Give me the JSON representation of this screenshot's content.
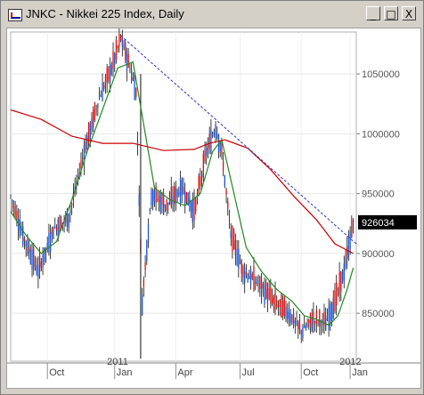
{
  "window": {
    "title": "JNKC - Nikkei 225 Index, Daily",
    "controls": {
      "minimize": "_",
      "maximize": "□",
      "close": "X"
    }
  },
  "chart_data": {
    "type": "candlestick",
    "title": "JNKC - Nikkei 225 Index, Daily",
    "ylim": [
      810000,
      1085000
    ],
    "y_ticks": [
      {
        "value": 850000,
        "label": "850000"
      },
      {
        "value": 900000,
        "label": "900000"
      },
      {
        "value": 950000,
        "label": "950000"
      },
      {
        "value": 1000000,
        "label": "1000000"
      },
      {
        "value": 1050000,
        "label": "1050000"
      }
    ],
    "x_ticks": [
      "Oct",
      "Jan",
      "Apr",
      "Jul",
      "Oct",
      "Jan"
    ],
    "year_labels": [
      "2011",
      "2012"
    ],
    "last_price": 926034,
    "last_price_label": "926034",
    "price_path": [
      [
        0,
        948000
      ],
      [
        8,
        915000
      ],
      [
        18,
        885000
      ],
      [
        28,
        920000
      ],
      [
        38,
        930000
      ],
      [
        48,
        985000
      ],
      [
        58,
        1030000
      ],
      [
        66,
        1055000
      ],
      [
        72,
        1080000
      ],
      [
        78,
        1055000
      ],
      [
        82,
        1035000
      ],
      [
        86,
        860000
      ],
      [
        92,
        950000
      ],
      [
        102,
        940000
      ],
      [
        112,
        955000
      ],
      [
        120,
        935000
      ],
      [
        128,
        985000
      ],
      [
        134,
        1005000
      ],
      [
        138,
        985000
      ],
      [
        144,
        915000
      ],
      [
        152,
        885000
      ],
      [
        162,
        875000
      ],
      [
        172,
        860000
      ],
      [
        182,
        850000
      ],
      [
        190,
        835000
      ],
      [
        198,
        845000
      ],
      [
        206,
        842000
      ],
      [
        212,
        860000
      ],
      [
        218,
        885000
      ],
      [
        224,
        926034
      ]
    ],
    "series": [
      {
        "name": "",
        "color": "#228822",
        "points": [
          [
            0,
            935000
          ],
          [
            10,
            915000
          ],
          [
            20,
            900000
          ],
          [
            30,
            910000
          ],
          [
            40,
            945000
          ],
          [
            50,
            985000
          ],
          [
            60,
            1020000
          ],
          [
            70,
            1055000
          ],
          [
            80,
            1060000
          ],
          [
            88,
            1000000
          ],
          [
            94,
            955000
          ],
          [
            104,
            945000
          ],
          [
            114,
            940000
          ],
          [
            124,
            950000
          ],
          [
            132,
            985000
          ],
          [
            138,
            995000
          ],
          [
            146,
            950000
          ],
          [
            154,
            905000
          ],
          [
            164,
            885000
          ],
          [
            174,
            870000
          ],
          [
            184,
            860000
          ],
          [
            192,
            848000
          ],
          [
            200,
            845000
          ],
          [
            208,
            840000
          ],
          [
            214,
            848000
          ],
          [
            220,
            870000
          ],
          [
            224,
            888000
          ]
        ]
      },
      {
        "name": "",
        "color": "#cc0000",
        "points": [
          [
            0,
            1020000
          ],
          [
            20,
            1012000
          ],
          [
            40,
            998000
          ],
          [
            60,
            992000
          ],
          [
            80,
            992000
          ],
          [
            100,
            986000
          ],
          [
            120,
            987000
          ],
          [
            130,
            992000
          ],
          [
            140,
            995000
          ],
          [
            155,
            988000
          ],
          [
            170,
            970000
          ],
          [
            185,
            948000
          ],
          [
            200,
            928000
          ],
          [
            212,
            908000
          ],
          [
            224,
            900000
          ]
        ]
      },
      {
        "name": "",
        "color": "#3030cc",
        "dashed": true,
        "points": [
          [
            72,
            1082000
          ],
          [
            226,
            908000
          ]
        ]
      }
    ]
  }
}
